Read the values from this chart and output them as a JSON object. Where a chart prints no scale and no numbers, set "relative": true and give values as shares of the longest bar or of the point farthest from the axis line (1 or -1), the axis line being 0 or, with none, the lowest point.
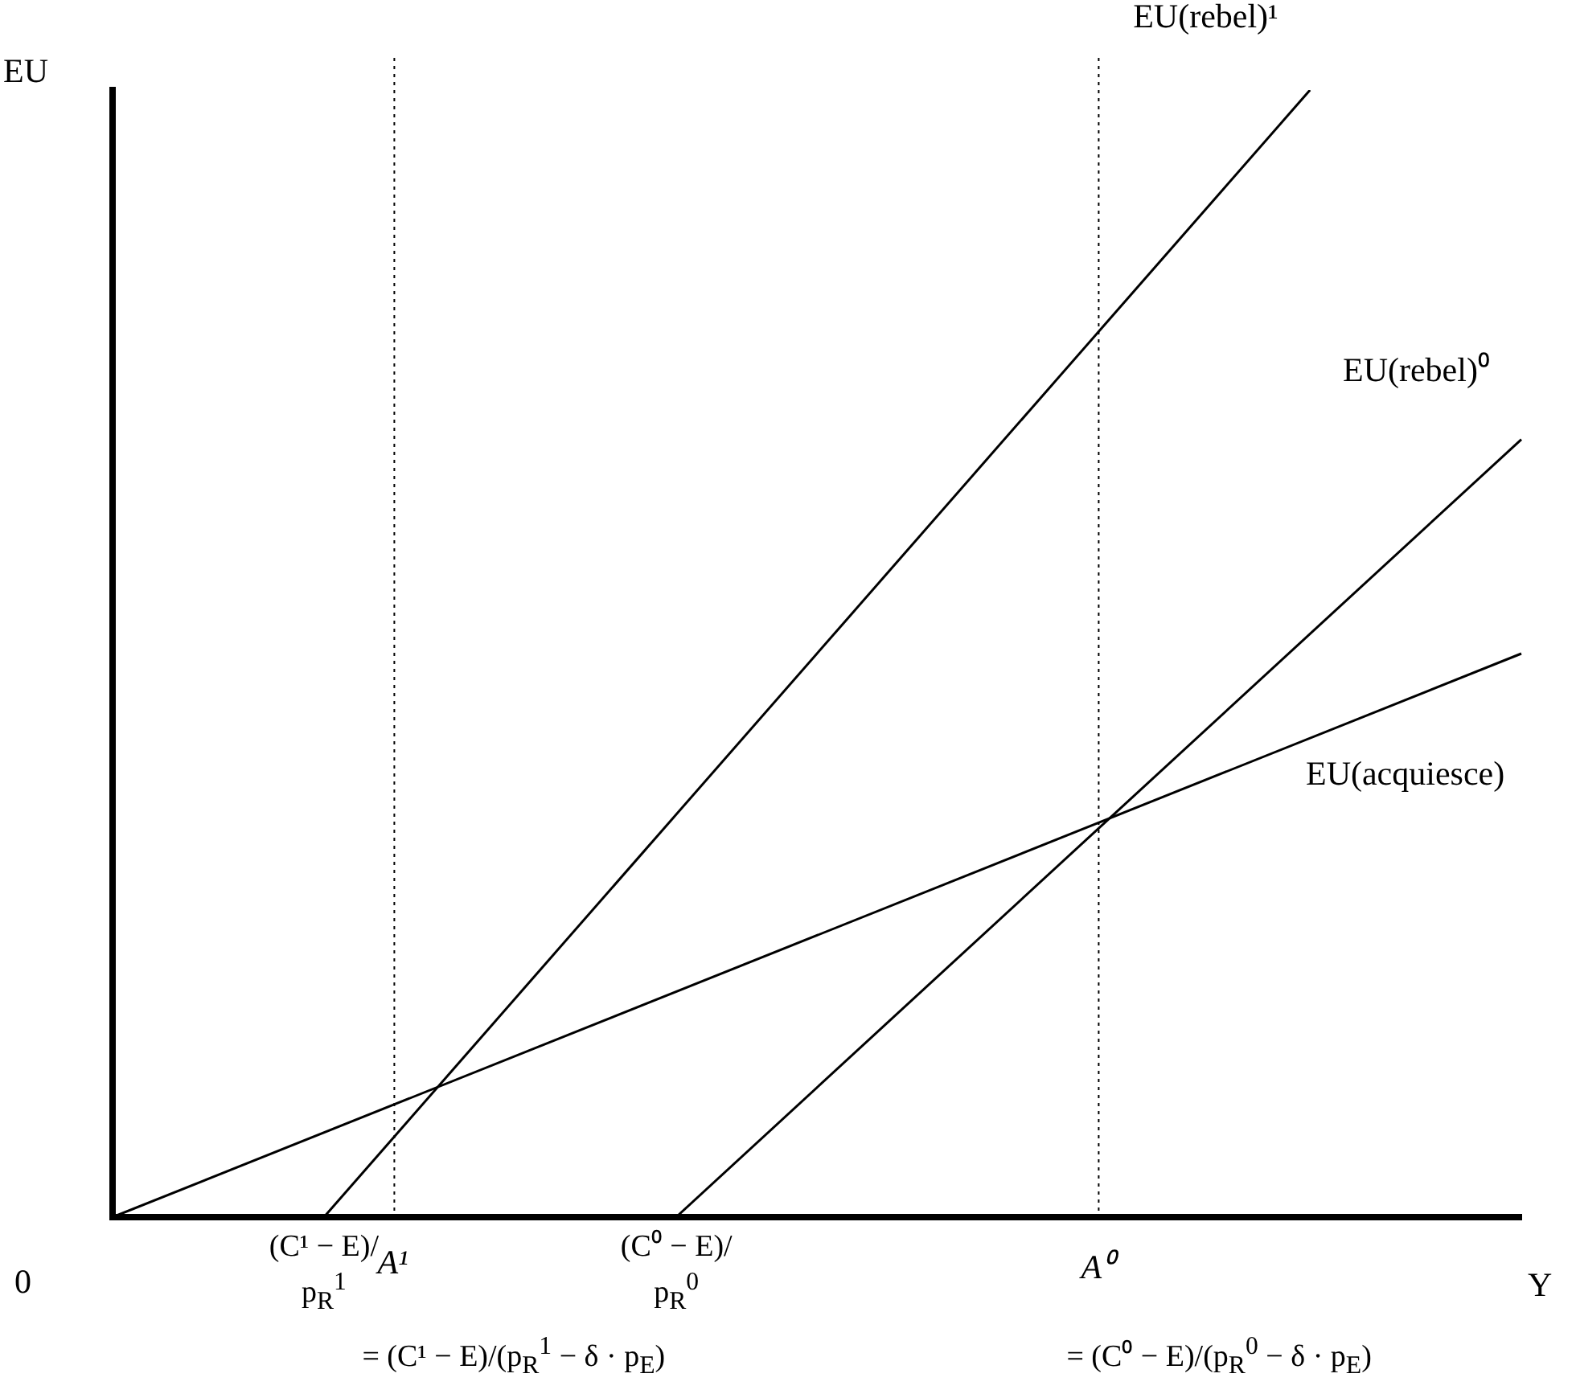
{
  "chart_data": {
    "type": "line",
    "relative": true,
    "xlabel": "Y",
    "ylabel": "EU",
    "legend": false,
    "grid": false,
    "marker": "none",
    "categories": [
      null,
      null,
      null,
      "(C¹ − E)/p$_{R}$$^{1}$",
      "A¹",
      null,
      null,
      null,
      "(C⁰ − E)/p$_{R}$$^{0}$",
      null,
      null,
      null,
      null,
      null,
      "A⁰",
      null,
      null,
      null,
      null,
      null,
      null
    ],
    "series": [
      {
        "name": "EU(rebel)¹",
        "color": "#000000",
        "values": [
          null,
          null,
          null,
          0,
          null,
          null,
          null,
          null,
          null,
          null,
          null,
          null,
          null,
          null,
          null,
          null,
          null,
          1,
          null,
          null,
          null
        ]
      },
      {
        "name": "EU(rebel)⁰",
        "color": "#000000",
        "values": [
          null,
          null,
          null,
          null,
          null,
          null,
          null,
          null,
          0,
          null,
          null,
          null,
          null,
          null,
          null,
          null,
          null,
          null,
          null,
          null,
          0.69
        ]
      },
      {
        "name": "EU(acquiesce)",
        "color": "#000000",
        "values": [
          0,
          null,
          null,
          null,
          null,
          null,
          null,
          null,
          null,
          null,
          null,
          null,
          null,
          null,
          null,
          null,
          null,
          null,
          null,
          null,
          0.5
        ]
      }
    ],
    "ref_lines": [
      {
        "axis": "x",
        "value": "A¹",
        "line_style": "dotted",
        "color": "#000000"
      },
      {
        "axis": "x",
        "value": "A⁰",
        "line_style": "dotted",
        "color": "#000000"
      }
    ],
    "annotations": [
      "0",
      "= (C¹ − E)/(p$_{R}$$^{1}$ − δ · p$_{E}$)",
      "= (C⁰ − E)/(p$_{R}$$^{0}$ − δ · p$_{E}$)"
    ]
  }
}
